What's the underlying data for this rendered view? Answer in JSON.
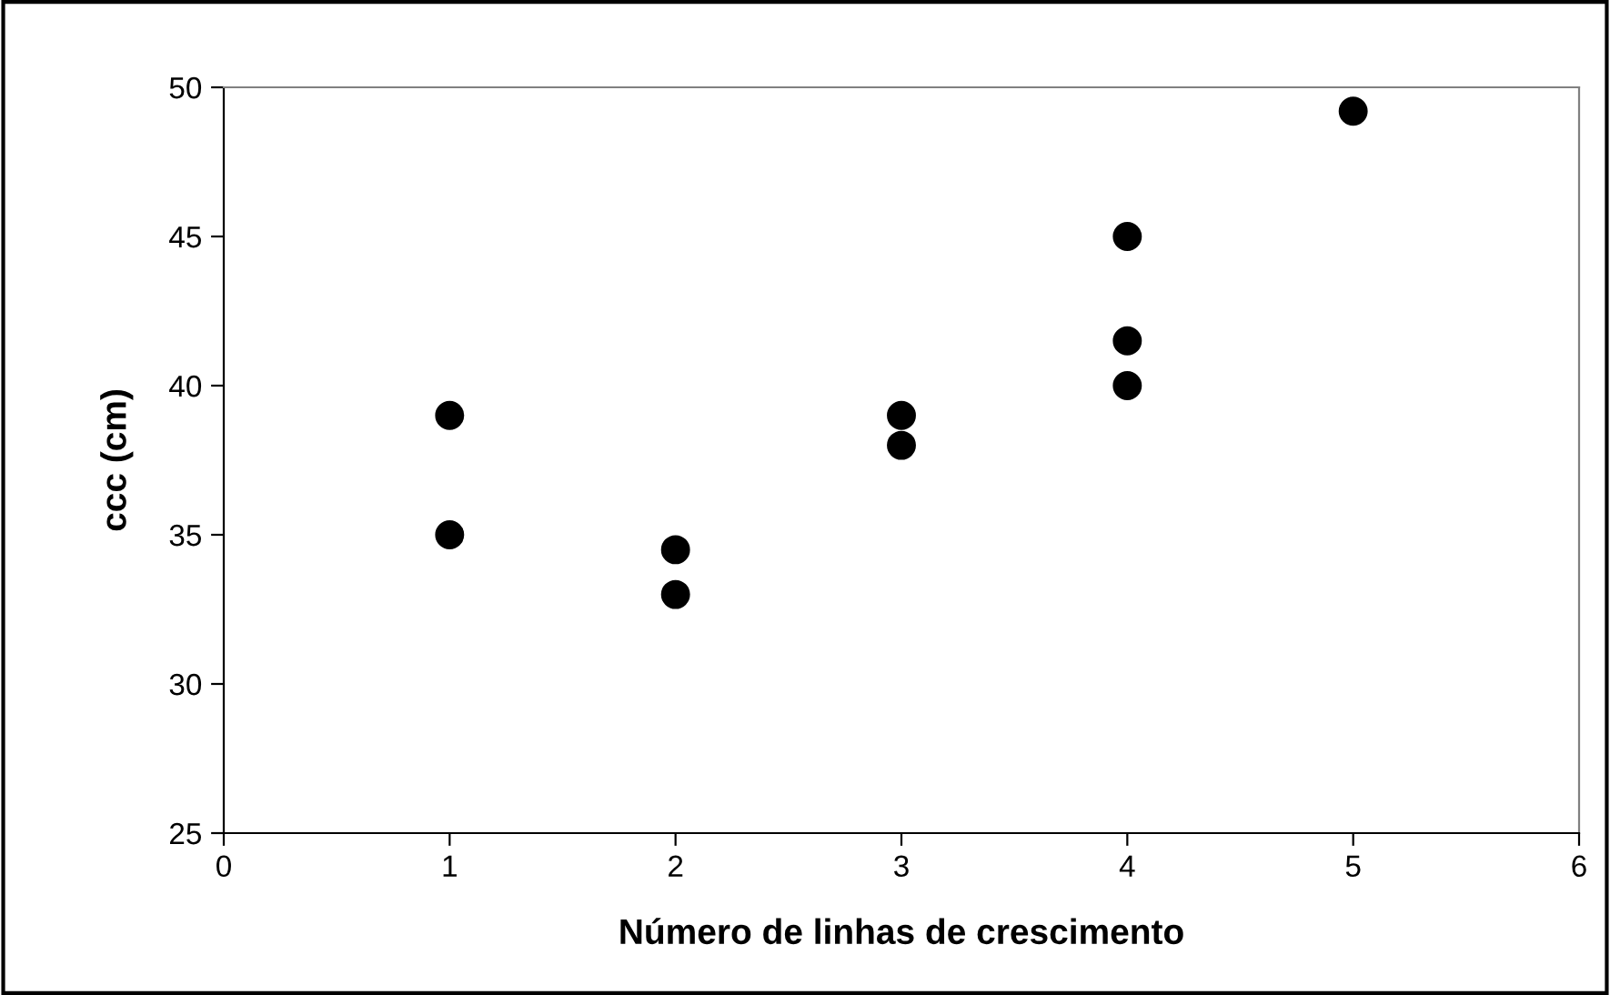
{
  "chart_data": {
    "type": "scatter",
    "xlabel": "Número de linhas de crescimento",
    "ylabel": "ccc (cm)",
    "x": [
      1,
      1,
      2,
      2,
      3,
      3,
      4,
      4,
      4,
      5
    ],
    "values": [
      39,
      35,
      34.5,
      33,
      39,
      38,
      45,
      41.5,
      40,
      49.2
    ],
    "color": "#000000",
    "marker": "circle",
    "xlim": [
      0,
      6
    ],
    "xticks": [
      0,
      1,
      2,
      3,
      4,
      5,
      6
    ],
    "ylim": [
      25,
      50
    ],
    "yticks": [
      25,
      30,
      35,
      40,
      45,
      50
    ],
    "grid": false,
    "legend": false
  }
}
